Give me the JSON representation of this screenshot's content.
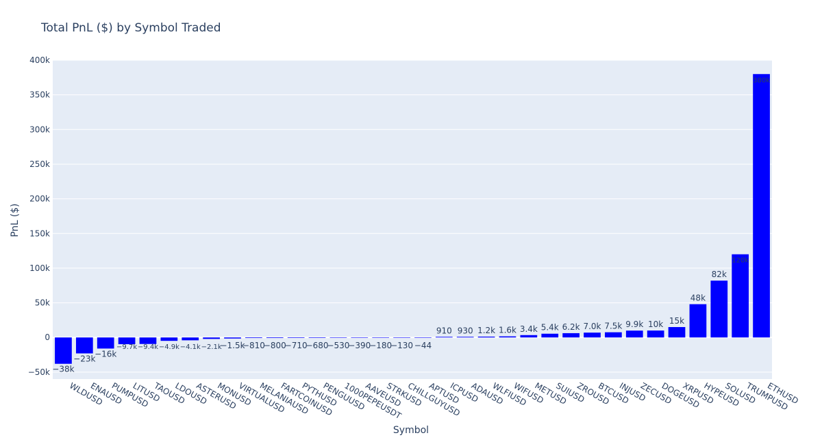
{
  "colors": {
    "bar": "#0000ff",
    "plot_background": "#e5ecf6",
    "gridline": "#ffffff",
    "text": "#2a3f5f"
  },
  "chart_data": {
    "type": "bar",
    "title": "Total PnL ($) by Symbol Traded",
    "xlabel": "Symbol",
    "ylabel": "PnL ($)",
    "ylim": [
      -60000,
      400000
    ],
    "yticks": [
      -50000,
      0,
      50000,
      100000,
      150000,
      200000,
      250000,
      300000,
      350000,
      400000
    ],
    "ytick_labels": [
      "−50k",
      "0",
      "50k",
      "100k",
      "150k",
      "200k",
      "250k",
      "300k",
      "350k",
      "400k"
    ],
    "grid": true,
    "categories": [
      "WLDUSD",
      "ENAUSD",
      "PUMPUSD",
      "LITUSD",
      "TAOUSD",
      "LDOUSD",
      "ASTERUSD",
      "MONUSD",
      "VIRTUALUSD",
      "MELANIAUSD",
      "FARTCOINUSD",
      "PYTHUSD",
      "PENGUUSD",
      "1000PEPEUSDT",
      "AAVEUSD",
      "STRKUSD",
      "CHILLGUYUSD",
      "APTUSD",
      "ICPUSD",
      "ADAUSD",
      "WLFIUSD",
      "WIFUSD",
      "METUSD",
      "SUIUSD",
      "ZROUSD",
      "BTCUSD",
      "INJUSD",
      "ZECUSD",
      "DOGEUSD",
      "XRPUSD",
      "HYPEUSD",
      "SOLUSD",
      "TRUMPUSD",
      "ETHUSD"
    ],
    "values": [
      -38000,
      -23000,
      -16000,
      -9700,
      -9400,
      -4900,
      -4100,
      -2100,
      -1500,
      -810,
      -800,
      -710,
      -680,
      -530,
      -390,
      -180,
      -130,
      -44,
      910,
      930,
      1200,
      1600,
      3400,
      5400,
      6200,
      7000,
      7500,
      9900,
      10000,
      15000,
      48000,
      82000,
      120000,
      380000
    ],
    "data_labels": [
      "−38k",
      "−23k",
      "−16k",
      "−9.7k",
      "−9.4k",
      "−4.9k",
      "−4.1k",
      "−2.1k",
      "−1.5k",
      "−810",
      "−800",
      "−710",
      "−680",
      "−530",
      "−390",
      "−180",
      "−130",
      "−44",
      "910",
      "930",
      "1.2k",
      "1.6k",
      "3.4k",
      "5.4k",
      "6.2k",
      "7.0k",
      "7.5k",
      "9.9k",
      "10k",
      "15k",
      "48k",
      "82k",
      "120k",
      "380k"
    ]
  }
}
